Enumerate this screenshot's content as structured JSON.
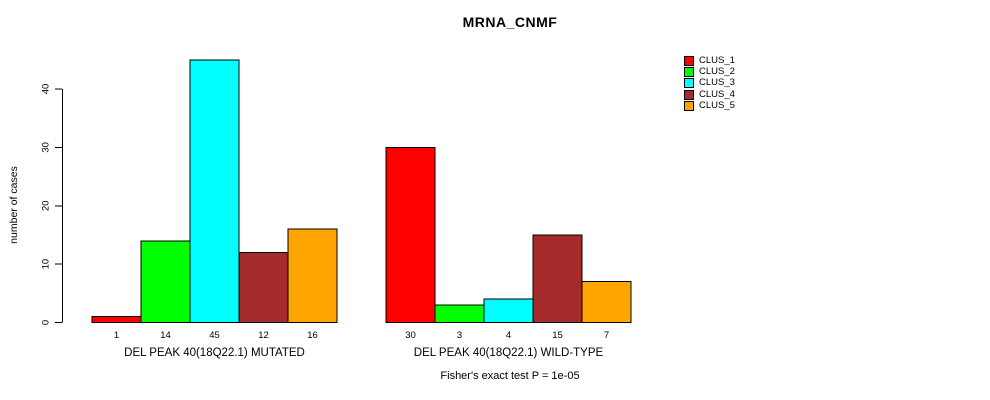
{
  "chart_data": {
    "type": "bar",
    "title": "MRNA_CNMF",
    "ylabel": "number of cases",
    "xlabel": "",
    "ylim": [
      0,
      45
    ],
    "yticks": [
      0,
      10,
      20,
      30,
      40
    ],
    "grid": false,
    "legend_position": "right",
    "bar_border_color": "#000000",
    "categories": [
      "DEL PEAK 40(18Q22.1) MUTATED",
      "DEL PEAK 40(18Q22.1) WILD-TYPE"
    ],
    "series": [
      {
        "name": "CLUS_1",
        "color": "#ff0000",
        "values": [
          1,
          30
        ]
      },
      {
        "name": "CLUS_2",
        "color": "#00ff00",
        "values": [
          14,
          3
        ]
      },
      {
        "name": "CLUS_3",
        "color": "#00ffff",
        "values": [
          45,
          4
        ]
      },
      {
        "name": "CLUS_4",
        "color": "#a52a2a",
        "values": [
          12,
          15
        ]
      },
      {
        "name": "CLUS_5",
        "color": "#ffa500",
        "values": [
          16,
          7
        ]
      }
    ],
    "bar_value_labels": [
      [
        1,
        14,
        45,
        12,
        16
      ],
      [
        30,
        3,
        4,
        15,
        7
      ]
    ],
    "footnote": "Fisher's exact test P = 1e-05"
  }
}
